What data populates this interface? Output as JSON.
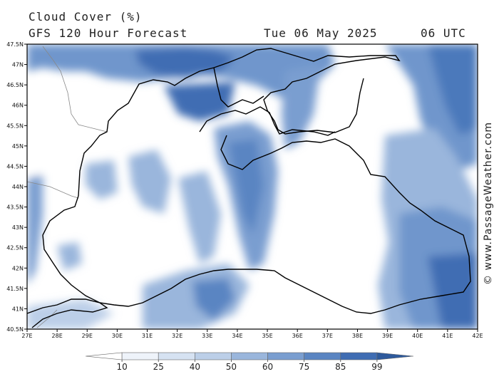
{
  "header": {
    "title": "Cloud Cover (%)",
    "model": "GFS 120 Hour Forecast",
    "date": "Tue 06 May 2025",
    "time": "06 UTC"
  },
  "credit": "© www.PassageWeather.com",
  "axes": {
    "lon_labels": [
      "27E",
      "28E",
      "29E",
      "30E",
      "31E",
      "32E",
      "33E",
      "34E",
      "35E",
      "36E",
      "37E",
      "38E",
      "39E",
      "40E",
      "41E",
      "42E"
    ],
    "lat_labels": [
      "47.5N",
      "47N",
      "46.5N",
      "46N",
      "45.5N",
      "45N",
      "44.5N",
      "44N",
      "43.5N",
      "43N",
      "42.5N",
      "42N",
      "41.5N",
      "41N",
      "40.5N"
    ]
  },
  "legend": {
    "levels": [
      "10",
      "25",
      "40",
      "50",
      "60",
      "75",
      "85",
      "99"
    ],
    "colors": [
      "#ffffff",
      "#eef3fa",
      "#d6e2f2",
      "#bccfe8",
      "#9ab6dc",
      "#7a9ed0",
      "#5a85c2",
      "#3f6db3",
      "#2e5a9c"
    ]
  },
  "colors": {
    "coast": "#000000",
    "border": "#888888",
    "land_bg": "#ffffff"
  }
}
